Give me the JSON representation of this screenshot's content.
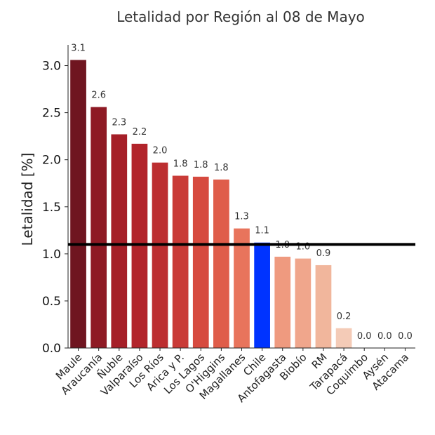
{
  "chart_data": {
    "type": "bar",
    "title": "Letalidad por Región al 08 de Mayo",
    "xlabel": "",
    "ylabel": "Letalidad [%]",
    "ylim": [
      0,
      3.22
    ],
    "yticks": [
      "0.0",
      "0.5",
      "1.0",
      "1.5",
      "2.0",
      "2.5",
      "3.0"
    ],
    "grid": false,
    "categories": [
      "Maule",
      "Araucanía",
      "Ñuble",
      "Valparaíso",
      "Los Ríos",
      "Arica y P.",
      "Los Lagos",
      "O'Higgins",
      "Magallanes",
      "Chile",
      "Antofagasta",
      "Biobío",
      "RM",
      "Tarapacá",
      "Coquimbo",
      "Aysén",
      "Atacama"
    ],
    "values": [
      3.06,
      2.56,
      2.27,
      2.17,
      1.97,
      1.83,
      1.82,
      1.79,
      1.27,
      1.12,
      0.97,
      0.95,
      0.88,
      0.21,
      0.0,
      0.0,
      0.0
    ],
    "value_labels": [
      "3.1",
      "2.6",
      "2.3",
      "2.2",
      "2.0",
      "1.8",
      "1.8",
      "1.8",
      "1.3",
      "1.1",
      "1.0",
      "1.0",
      "0.9",
      "0.2",
      "0.0",
      "0.0",
      "0.0"
    ],
    "colors": [
      "#6f1520",
      "#8e1a24",
      "#a51f28",
      "#b2242b",
      "#bc2e30",
      "#c93b37",
      "#d64a3f",
      "#df5d4a",
      "#e8745c",
      "#0033ff",
      "#ef9a7f",
      "#f0a68c",
      "#f1b69c",
      "#f4cbb7",
      "#f8dcd0",
      "#fbe7de",
      "#fdf1ea"
    ],
    "reference_line": {
      "value": 1.1,
      "color": "#000000"
    }
  }
}
